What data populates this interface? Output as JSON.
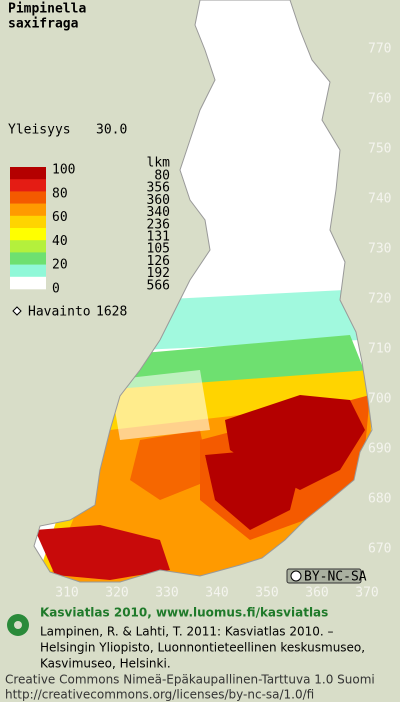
{
  "title": [
    "Pimpinella",
    "saxifraga"
  ],
  "frequency": {
    "label": "Yleisyys",
    "value": "30.0"
  },
  "legend": {
    "scale": [
      100,
      80,
      60,
      40,
      20,
      0
    ],
    "count_header": "lkm",
    "counts": [
      80,
      356,
      360,
      340,
      236,
      131,
      105,
      126,
      192,
      566
    ],
    "colors": [
      "#b40000",
      "#e41c14",
      "#f45a00",
      "#ff9a00",
      "#ffd400",
      "#ffff00",
      "#b4f03c",
      "#6ee070",
      "#90f8d8",
      "#ffffff"
    ]
  },
  "observations": {
    "label": "Havainto",
    "count": 1628
  },
  "grid": {
    "northing": [
      770,
      760,
      750,
      740,
      730,
      720,
      710,
      700,
      690,
      680,
      670
    ],
    "easting": [
      310,
      320,
      330,
      340,
      350,
      360,
      370
    ]
  },
  "license_badge": "BY-NC-SA",
  "footer": {
    "heading": "Kasviatlas 2010, www.luomus.fi/kasviatlas",
    "citation": [
      "Lampinen, R. & Lahti, T. 2011: Kasviatlas 2010. –",
      "Helsingin Yliopisto, Luonnontieteellinen keskusmuseo,",
      "Kasvimuseo, Helsinki."
    ],
    "license": [
      "Creative Commons Nimeä-Epäkaupallinen-Tarttuva 1.0 Suomi",
      "http://creativecommons.org/licenses/by-nc-sa/1.0/fi"
    ]
  }
}
